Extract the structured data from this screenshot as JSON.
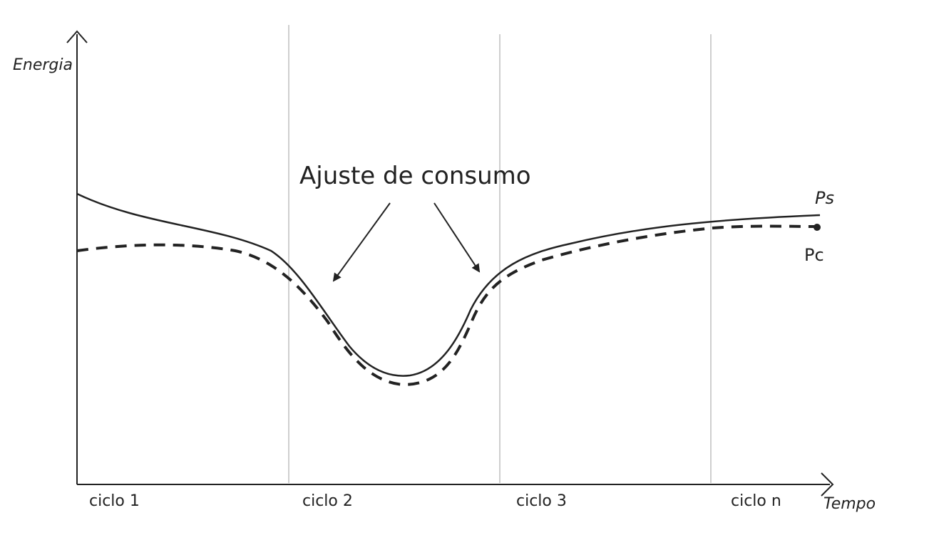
{
  "diagram": {
    "y_axis_label": "Energia",
    "x_axis_label": "Tempo",
    "cycles": [
      "ciclo 1",
      "ciclo 2",
      "ciclo 3",
      "ciclo n"
    ],
    "annotation": "Ajuste de consumo",
    "series": [
      {
        "name": "Ps",
        "style": "solid"
      },
      {
        "name": "Pc",
        "style": "dashed"
      }
    ],
    "colors": {
      "line": "#222222",
      "grid": "#cfcfcf",
      "background": "#ffffff"
    }
  }
}
